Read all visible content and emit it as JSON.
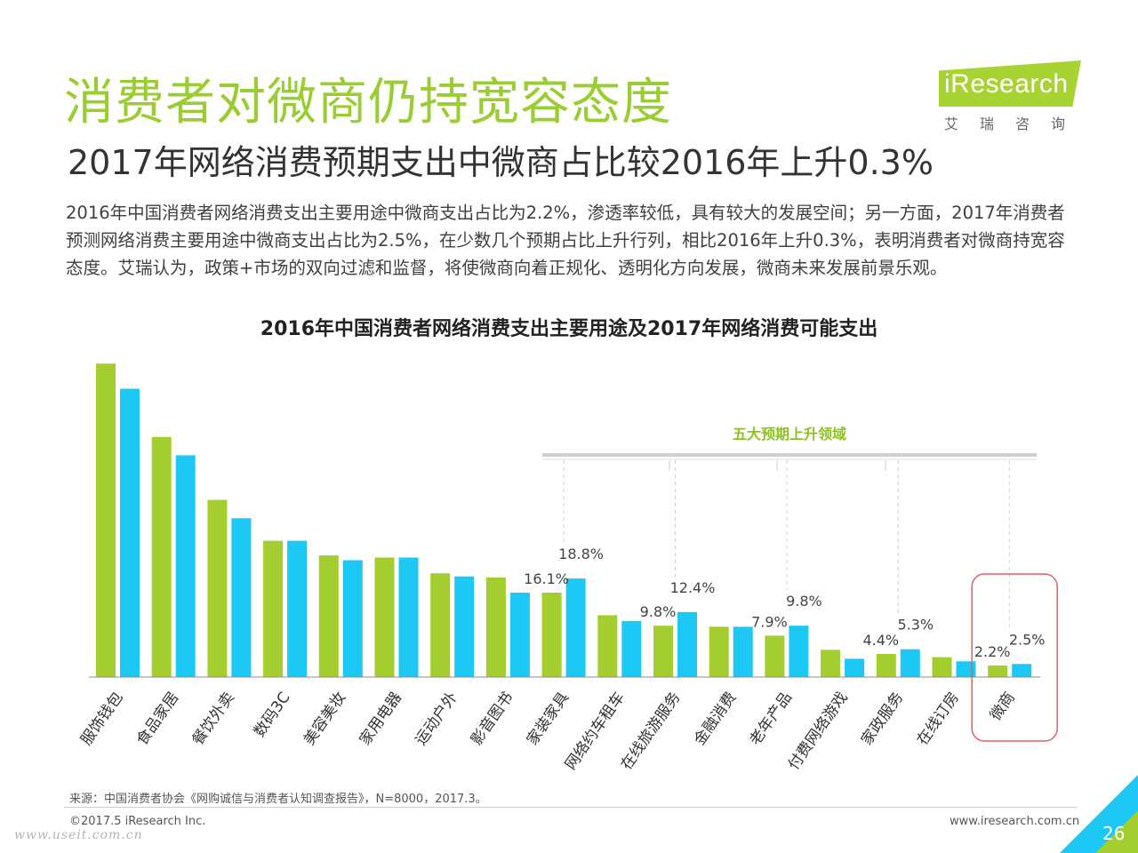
{
  "header": {
    "title": "消费者对微商仍持宽容态度",
    "subtitle": "2017年网络消费预期支出中微商占比较2016年上升0.3%"
  },
  "logo": {
    "word": "iResearch",
    "cn": "艾瑞咨询"
  },
  "intro": "2016年中国消费者网络消费支出主要用途中微商支出占比为2.2%，渗透率较低，具有较大的发展空间；另一方面，2017年消费者预测网络消费主要用途中微商支出占比为2.5%，在少数几个预期占比上升行列，相比2016年上升0.3%，表明消费者对微商持宽容态度。艾瑞认为，政策+市场的双向过滤和监督，将使微商向着正规化、透明化方向发展，微商未来发展前景乐观。",
  "chart_data": {
    "type": "bar",
    "title": "2016年中国消费者网络消费支出主要用途及2017年网络消费可能支出",
    "categories": [
      "服饰钱包",
      "食品家居",
      "餐饮外卖",
      "数码3C",
      "美容美妆",
      "家用电器",
      "运动户外",
      "影音图书",
      "家装家具",
      "网络约车租车",
      "在线旅游服务",
      "金融消费",
      "老年产品",
      "付费网络游戏",
      "家政服务",
      "在线订房",
      "微商"
    ],
    "series": [
      {
        "values": [
          59.8,
          45.8,
          33.8,
          26.0,
          23.2,
          22.8,
          19.8,
          19.0,
          16.1,
          11.8,
          9.8,
          9.6,
          7.9,
          5.2,
          4.4,
          3.8,
          2.2
        ]
      },
      {
        "values": [
          55.0,
          42.3,
          30.3,
          26.0,
          22.3,
          22.8,
          19.2,
          16.1,
          18.8,
          10.7,
          12.4,
          9.6,
          9.8,
          3.5,
          5.3,
          3.0,
          2.5
        ]
      }
    ],
    "data_labels": [
      {
        "category": "家装家具",
        "series": 0,
        "text": "16.1%"
      },
      {
        "category": "家装家具",
        "series": 1,
        "text": "18.8%"
      },
      {
        "category": "在线旅游服务",
        "series": 0,
        "text": "9.8%"
      },
      {
        "category": "在线旅游服务",
        "series": 1,
        "text": "12.4%"
      },
      {
        "category": "老年产品",
        "series": 0,
        "text": "7.9%"
      },
      {
        "category": "老年产品",
        "series": 1,
        "text": "9.8%"
      },
      {
        "category": "家政服务",
        "series": 0,
        "text": "4.4%"
      },
      {
        "category": "家政服务",
        "series": 1,
        "text": "5.3%"
      },
      {
        "category": "微商",
        "series": 0,
        "text": "2.2%"
      },
      {
        "category": "微商",
        "series": 1,
        "text": "2.5%"
      }
    ],
    "highlight_group": {
      "label": "五大预期上升领域",
      "categories": [
        "家装家具",
        "在线旅游服务",
        "老年产品",
        "家政服务",
        "微商"
      ]
    },
    "highlighted_category": "微商",
    "grid": false,
    "colors": {
      "series_2016": "#a4cd30",
      "series_2017": "#1ec8f4",
      "highlight_label": "#8dc21f",
      "highlight_box": "#e06060"
    }
  },
  "footer": {
    "source": "来源：中国消费者协会《网购诚信与消费者认知调查报告》，N=8000，2017.3。",
    "copyright": "©2017.5 iResearch Inc.",
    "site": "www.iresearch.com.cn",
    "page": "26",
    "watermark": "www.useit.com.cn"
  }
}
